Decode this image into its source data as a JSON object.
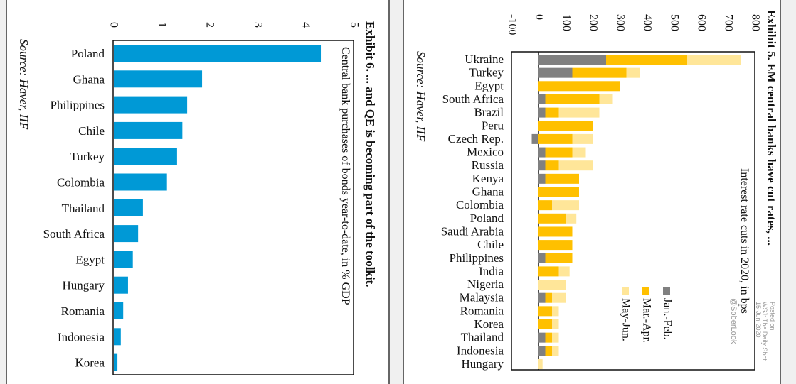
{
  "chart_data": [
    {
      "type": "bar",
      "orientation": "horizontal",
      "title": "Exhibit 6. ... and QE is becoming part of the toolkit.",
      "subtitle": "Central bank purchases of bonds year-to-date, in % GDP",
      "source": "Source: Haver, IIF",
      "categories": [
        "Poland",
        "Ghana",
        "Philippines",
        "Chile",
        "Turkey",
        "Colombia",
        "Thailand",
        "South Africa",
        "Egypt",
        "Hungary",
        "Romania",
        "Indonesia",
        "Korea"
      ],
      "values": [
        4.32,
        1.85,
        1.54,
        1.44,
        1.33,
        1.12,
        0.62,
        0.52,
        0.41,
        0.31,
        0.21,
        0.16,
        0.09
      ],
      "xlim": [
        0,
        5
      ],
      "ticks": [
        "0",
        "1",
        "2",
        "3",
        "4",
        "5"
      ],
      "color": "#0099d6",
      "grid": false
    },
    {
      "type": "bar",
      "orientation": "horizontal",
      "stacked": true,
      "title": "Exhibit 5. EM central banks have cut rates, ...",
      "subtitle": "Interest rate cuts in 2020, in bps",
      "source": "Source: Haver, IIF",
      "watermark": [
        "Posted on",
        "WSJ: The Daily Shot",
        "15-Jun-2020",
        "@SoberLook"
      ],
      "categories": [
        "Ukraine",
        "Turkey",
        "Egypt",
        "South Africa",
        "Brazil",
        "Peru",
        "Czech Rep.",
        "Mexico",
        "Russia",
        "Kenya",
        "Ghana",
        "Colombia",
        "Poland",
        "Saudi Arabia",
        "Chile",
        "Philippines",
        "India",
        "Nigeria",
        "Malaysia",
        "Romania",
        "Korea",
        "Thailand",
        "Indonesia",
        "Hungary"
      ],
      "series": [
        {
          "name": "Jan.-Feb.",
          "color": "#808080",
          "values": [
            250,
            125,
            0,
            25,
            25,
            0,
            -25,
            25,
            25,
            25,
            0,
            0,
            0,
            0,
            0,
            25,
            0,
            0,
            25,
            0,
            0,
            25,
            25,
            0
          ]
        },
        {
          "name": "Mar.-Apr.",
          "color": "#ffc000",
          "values": [
            300,
            200,
            300,
            200,
            50,
            200,
            125,
            100,
            50,
            125,
            150,
            50,
            100,
            125,
            125,
            100,
            75,
            0,
            25,
            50,
            50,
            25,
            25,
            0
          ]
        },
        {
          "name": "May-Jun.",
          "color": "#ffe699",
          "values": [
            200,
            50,
            0,
            50,
            150,
            0,
            75,
            50,
            125,
            0,
            0,
            100,
            40,
            0,
            0,
            0,
            40,
            100,
            50,
            25,
            25,
            25,
            25,
            15
          ]
        }
      ],
      "xlim": [
        -100,
        800
      ],
      "ticks": [
        "-100",
        "0",
        "100",
        "200",
        "300",
        "400",
        "500",
        "600",
        "700",
        "800"
      ],
      "legend_position": "bottom-right",
      "grid": false
    }
  ]
}
